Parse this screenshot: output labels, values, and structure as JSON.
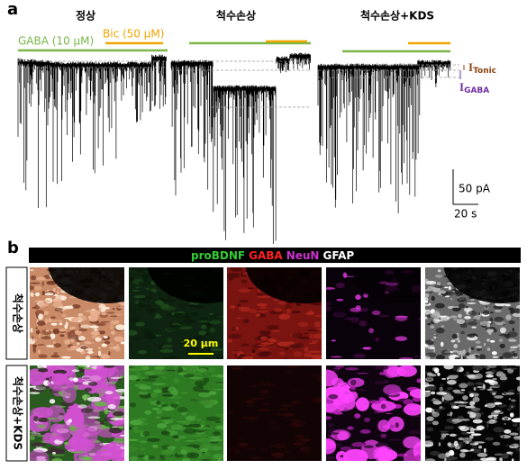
{
  "panel_a": {
    "label": "a",
    "conditions": [
      "정상",
      "척수손상",
      "척수손상+KDS"
    ],
    "gaba": "GABA (10 μM)",
    "bic": "Bic (50 μM)",
    "i_tonic": {
      "main": "I",
      "sub": "Tonic"
    },
    "i_gaba": {
      "main": "I",
      "sub": "GABA"
    },
    "scale_y": "50 pA",
    "scale_x": "20 s"
  },
  "panel_b": {
    "label": "b",
    "stains": [
      "proBDNF",
      "GABA",
      "NeuN",
      "GFAP"
    ],
    "rows": [
      "척수손상",
      "척수손상+KDS"
    ],
    "scale": "20 μm"
  }
}
